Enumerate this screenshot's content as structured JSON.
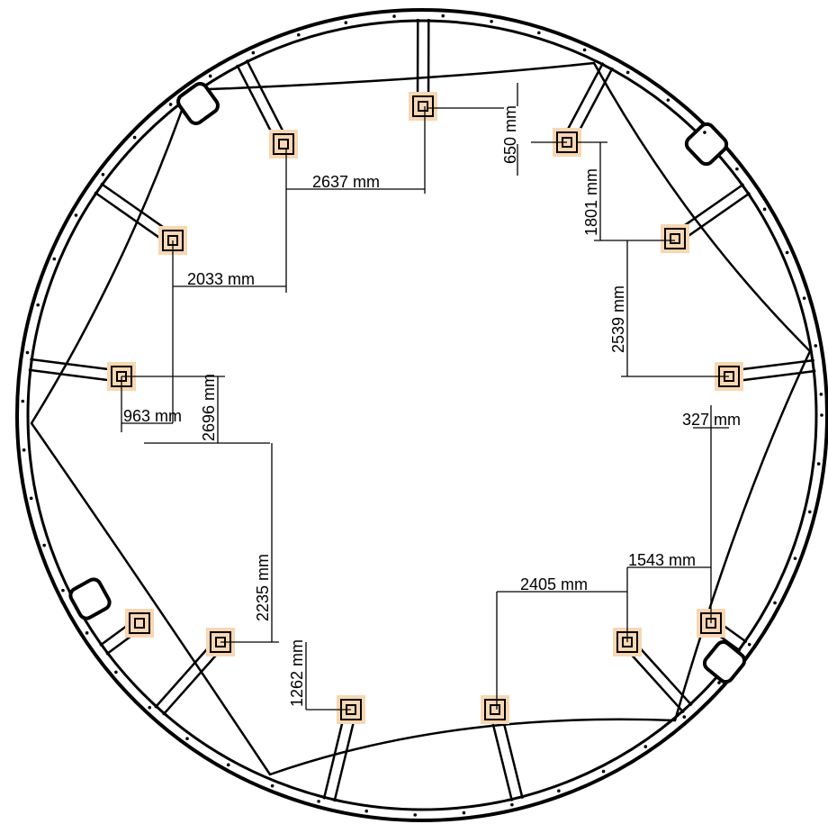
{
  "dimensions": [
    "2637 mm",
    "650 mm",
    "1801 mm",
    "2033 mm",
    "2539 mm",
    "963 mm",
    "327 mm",
    "2696 mm",
    "2235 mm",
    "1543 mm",
    "2405 mm",
    "1262 mm"
  ]
}
